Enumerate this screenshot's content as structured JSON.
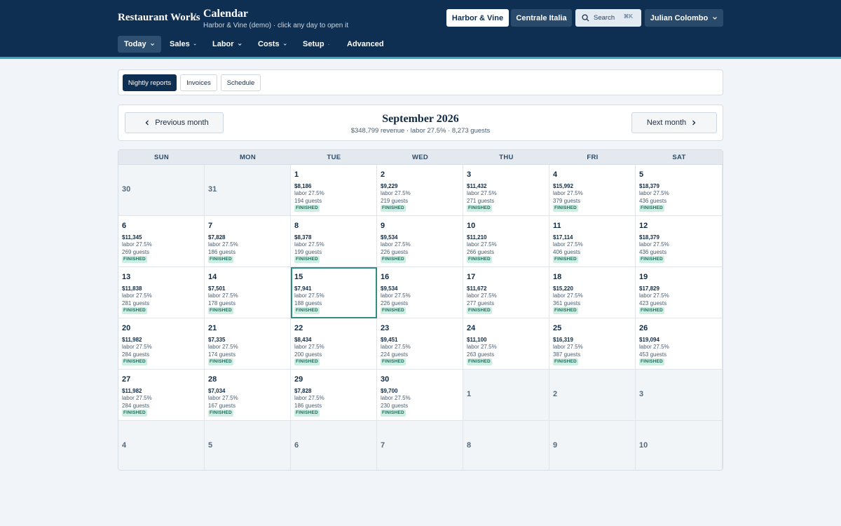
{
  "header": {
    "brand": "Restaurant Works",
    "separator": "/",
    "title": "Calendar",
    "subtitle": "Harbor & Vine (demo) · click any day to open it",
    "locations": [
      "Harbor & Vine",
      "Centrale Italia"
    ],
    "search_label": "Search",
    "search_shortcut": "⌘K",
    "user_name": "Julian Colombo"
  },
  "nav": [
    {
      "label": "Today",
      "active": true
    },
    {
      "label": "Sales",
      "active": false
    },
    {
      "label": "Labor",
      "active": false
    },
    {
      "label": "Costs",
      "active": false
    },
    {
      "label": "Setup",
      "active": false
    },
    {
      "label": "Advanced",
      "active": false
    }
  ],
  "tabs": [
    {
      "label": "Nightly reports",
      "active": true
    },
    {
      "label": "Invoices",
      "active": false
    },
    {
      "label": "Schedule",
      "active": false
    }
  ],
  "month": {
    "prev_label": "Previous month",
    "next_label": "Next month",
    "title": "September 2026",
    "summary": "$348,799 revenue · labor 27.5% · 8,273 guests"
  },
  "calendar": {
    "weekdays": [
      "SUN",
      "MON",
      "TUE",
      "WED",
      "THU",
      "FRI",
      "SAT"
    ],
    "selected_day": 15,
    "cells": [
      {
        "day": "30",
        "out": true
      },
      {
        "day": "31",
        "out": true
      },
      {
        "day": "1",
        "revenue": "$8,186",
        "labor": "labor 27.5%",
        "guests": "194 guests",
        "status": "FINISHED"
      },
      {
        "day": "2",
        "revenue": "$9,229",
        "labor": "labor 27.5%",
        "guests": "219 guests",
        "status": "FINISHED"
      },
      {
        "day": "3",
        "revenue": "$11,432",
        "labor": "labor 27.5%",
        "guests": "271 guests",
        "status": "FINISHED"
      },
      {
        "day": "4",
        "revenue": "$15,992",
        "labor": "labor 27.5%",
        "guests": "379 guests",
        "status": "FINISHED"
      },
      {
        "day": "5",
        "revenue": "$18,379",
        "labor": "labor 27.5%",
        "guests": "436 guests",
        "status": "FINISHED"
      },
      {
        "day": "6",
        "revenue": "$11,345",
        "labor": "labor 27.5%",
        "guests": "269 guests",
        "status": "FINISHED"
      },
      {
        "day": "7",
        "revenue": "$7,828",
        "labor": "labor 27.5%",
        "guests": "186 guests",
        "status": "FINISHED"
      },
      {
        "day": "8",
        "revenue": "$8,378",
        "labor": "labor 27.5%",
        "guests": "199 guests",
        "status": "FINISHED"
      },
      {
        "day": "9",
        "revenue": "$9,534",
        "labor": "labor 27.5%",
        "guests": "226 guests",
        "status": "FINISHED"
      },
      {
        "day": "10",
        "revenue": "$11,210",
        "labor": "labor 27.5%",
        "guests": "266 guests",
        "status": "FINISHED"
      },
      {
        "day": "11",
        "revenue": "$17,114",
        "labor": "labor 27.5%",
        "guests": "406 guests",
        "status": "FINISHED"
      },
      {
        "day": "12",
        "revenue": "$18,379",
        "labor": "labor 27.5%",
        "guests": "436 guests",
        "status": "FINISHED"
      },
      {
        "day": "13",
        "revenue": "$11,838",
        "labor": "labor 27.5%",
        "guests": "281 guests",
        "status": "FINISHED"
      },
      {
        "day": "14",
        "revenue": "$7,501",
        "labor": "labor 27.5%",
        "guests": "178 guests",
        "status": "FINISHED"
      },
      {
        "day": "15",
        "revenue": "$7,941",
        "labor": "labor 27.5%",
        "guests": "188 guests",
        "status": "FINISHED"
      },
      {
        "day": "16",
        "revenue": "$9,534",
        "labor": "labor 27.5%",
        "guests": "226 guests",
        "status": "FINISHED"
      },
      {
        "day": "17",
        "revenue": "$11,672",
        "labor": "labor 27.5%",
        "guests": "277 guests",
        "status": "FINISHED"
      },
      {
        "day": "18",
        "revenue": "$15,220",
        "labor": "labor 27.5%",
        "guests": "361 guests",
        "status": "FINISHED"
      },
      {
        "day": "19",
        "revenue": "$17,829",
        "labor": "labor 27.5%",
        "guests": "423 guests",
        "status": "FINISHED"
      },
      {
        "day": "20",
        "revenue": "$11,982",
        "labor": "labor 27.5%",
        "guests": "284 guests",
        "status": "FINISHED"
      },
      {
        "day": "21",
        "revenue": "$7,335",
        "labor": "labor 27.5%",
        "guests": "174 guests",
        "status": "FINISHED"
      },
      {
        "day": "22",
        "revenue": "$8,434",
        "labor": "labor 27.5%",
        "guests": "200 guests",
        "status": "FINISHED"
      },
      {
        "day": "23",
        "revenue": "$9,451",
        "labor": "labor 27.5%",
        "guests": "224 guests",
        "status": "FINISHED"
      },
      {
        "day": "24",
        "revenue": "$11,100",
        "labor": "labor 27.5%",
        "guests": "263 guests",
        "status": "FINISHED"
      },
      {
        "day": "25",
        "revenue": "$16,319",
        "labor": "labor 27.5%",
        "guests": "387 guests",
        "status": "FINISHED"
      },
      {
        "day": "26",
        "revenue": "$19,094",
        "labor": "labor 27.5%",
        "guests": "453 guests",
        "status": "FINISHED"
      },
      {
        "day": "27",
        "revenue": "$11,982",
        "labor": "labor 27.5%",
        "guests": "284 guests",
        "status": "FINISHED"
      },
      {
        "day": "28",
        "revenue": "$7,034",
        "labor": "labor 27.5%",
        "guests": "167 guests",
        "status": "FINISHED"
      },
      {
        "day": "29",
        "revenue": "$7,828",
        "labor": "labor 27.5%",
        "guests": "186 guests",
        "status": "FINISHED"
      },
      {
        "day": "30",
        "revenue": "$9,700",
        "labor": "labor 27.5%",
        "guests": "230 guests",
        "status": "FINISHED"
      },
      {
        "day": "1",
        "out": true
      },
      {
        "day": "2",
        "out": true
      },
      {
        "day": "3",
        "out": true
      },
      {
        "day": "4",
        "out": true
      },
      {
        "day": "5",
        "out": true
      },
      {
        "day": "6",
        "out": true
      },
      {
        "day": "7",
        "out": true
      },
      {
        "day": "8",
        "out": true
      },
      {
        "day": "9",
        "out": true
      },
      {
        "day": "10",
        "out": true
      }
    ]
  },
  "colors": {
    "header_bg": "#0f2f52",
    "accent": "#3aa6b9",
    "badge_bg": "#cdeee3",
    "badge_text": "#1d6b5c",
    "selected_outline": "#2f8f83"
  }
}
